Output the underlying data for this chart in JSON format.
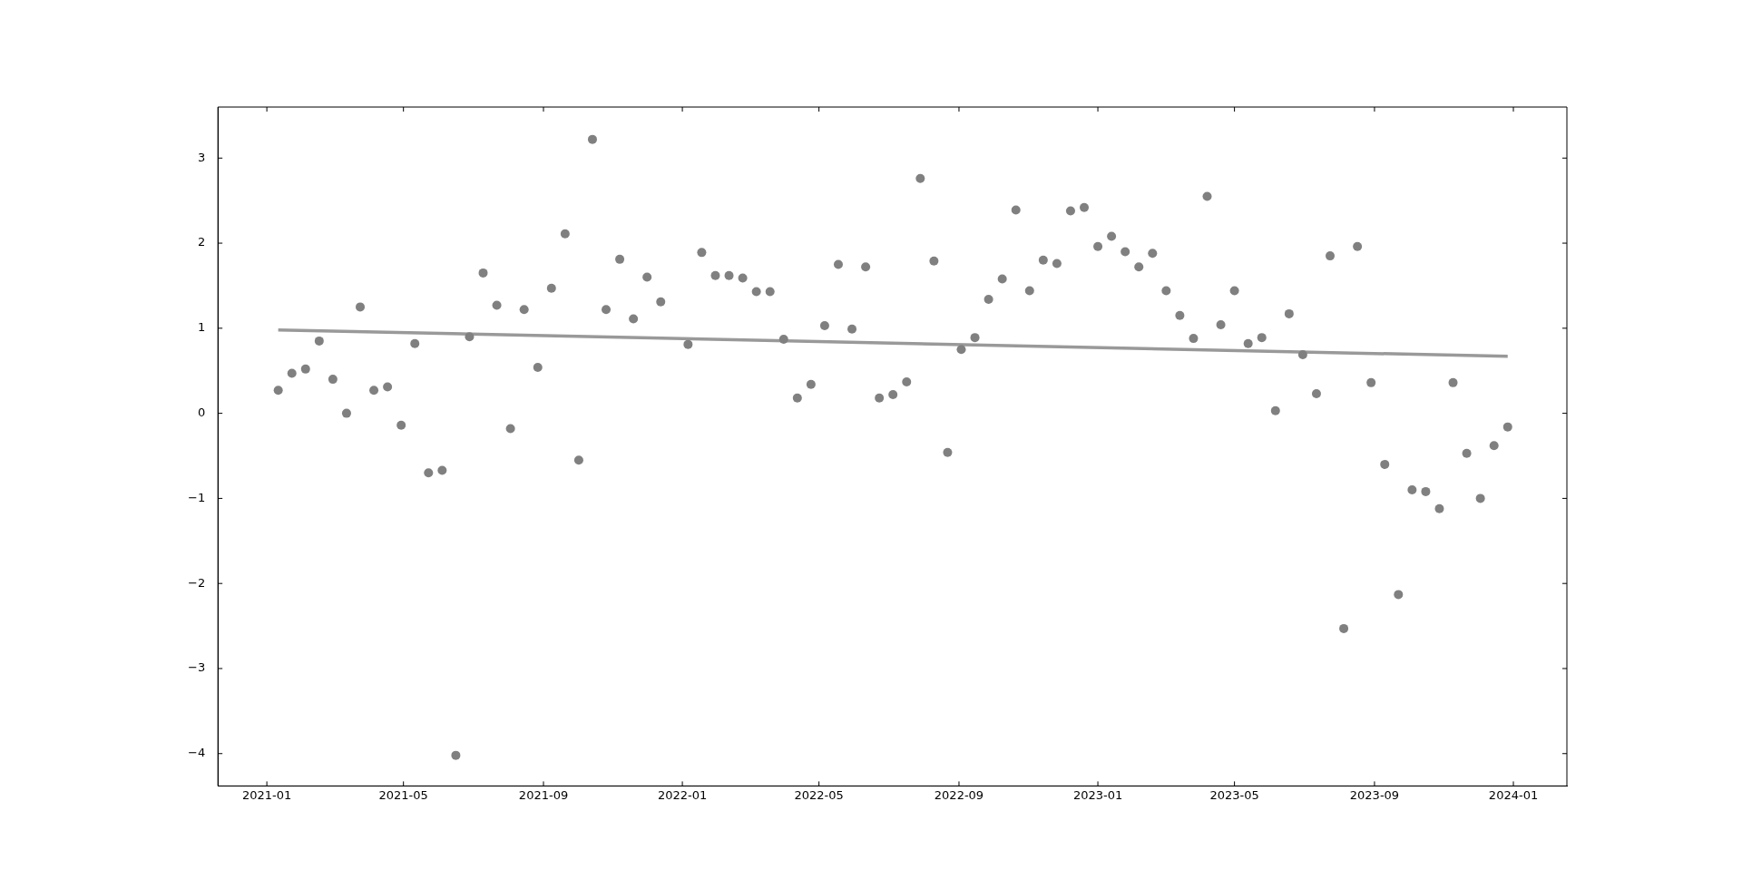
{
  "chart_data": {
    "type": "scatter",
    "x": [
      "2021-01-11",
      "2021-01-23",
      "2021-02-04",
      "2021-02-16",
      "2021-02-28",
      "2021-03-12",
      "2021-03-24",
      "2021-04-05",
      "2021-04-17",
      "2021-04-29",
      "2021-05-11",
      "2021-05-23",
      "2021-06-04",
      "2021-06-16",
      "2021-06-28",
      "2021-07-10",
      "2021-07-22",
      "2021-08-03",
      "2021-08-15",
      "2021-08-27",
      "2021-09-08",
      "2021-09-20",
      "2021-10-02",
      "2021-10-14",
      "2021-10-26",
      "2021-11-07",
      "2021-11-19",
      "2021-12-01",
      "2021-12-13",
      "2022-01-06",
      "2022-01-18",
      "2022-01-30",
      "2022-02-11",
      "2022-02-23",
      "2022-03-07",
      "2022-03-19",
      "2022-03-31",
      "2022-04-12",
      "2022-04-24",
      "2022-05-06",
      "2022-05-18",
      "2022-05-30",
      "2022-06-11",
      "2022-06-23",
      "2022-07-05",
      "2022-07-17",
      "2022-07-29",
      "2022-08-10",
      "2022-08-22",
      "2022-09-03",
      "2022-09-15",
      "2022-09-27",
      "2022-10-09",
      "2022-10-21",
      "2022-11-02",
      "2022-11-14",
      "2022-11-26",
      "2022-12-08",
      "2022-12-20",
      "2023-01-01",
      "2023-01-13",
      "2023-01-25",
      "2023-02-06",
      "2023-02-18",
      "2023-03-02",
      "2023-03-14",
      "2023-03-26",
      "2023-04-07",
      "2023-04-19",
      "2023-05-01",
      "2023-05-13",
      "2023-05-25",
      "2023-06-06",
      "2023-06-18",
      "2023-06-30",
      "2023-07-12",
      "2023-07-24",
      "2023-08-05",
      "2023-08-17",
      "2023-08-29",
      "2023-09-10",
      "2023-09-22",
      "2023-10-04",
      "2023-10-16",
      "2023-10-28",
      "2023-11-09",
      "2023-11-21",
      "2023-12-03",
      "2023-12-15",
      "2023-12-27"
    ],
    "series": [
      {
        "color": "#808080",
        "marker": "circle",
        "values": [
          0.27,
          0.47,
          0.52,
          0.85,
          0.4,
          0.0,
          1.25,
          0.27,
          0.31,
          -0.14,
          0.82,
          -0.7,
          -0.67,
          -4.02,
          0.9,
          1.65,
          1.27,
          -0.18,
          1.22,
          0.54,
          1.47,
          2.11,
          -0.55,
          3.22,
          1.22,
          1.81,
          1.11,
          1.6,
          1.31,
          0.81,
          1.89,
          1.62,
          1.62,
          1.59,
          1.43,
          1.43,
          0.87,
          0.18,
          0.34,
          1.03,
          1.75,
          0.99,
          1.72,
          0.18,
          0.22,
          0.37,
          2.76,
          1.79,
          -0.46,
          0.75,
          0.89,
          1.34,
          1.58,
          2.39,
          1.44,
          1.8,
          1.76,
          2.38,
          2.42,
          1.96,
          2.08,
          1.9,
          1.72,
          1.88,
          1.44,
          1.15,
          0.88,
          2.55,
          1.04,
          1.44,
          0.82,
          0.89,
          0.03,
          1.17,
          0.69,
          0.23,
          1.85,
          -2.53,
          1.96,
          0.36,
          -0.6,
          -2.13,
          -0.9,
          -0.92,
          -1.12,
          0.36,
          -0.47,
          -1.0,
          -0.38,
          -0.16
        ]
      },
      {
        "type": "line",
        "color": "#999999",
        "line_style": "solid",
        "marker": "none",
        "x": [
          "2021-01-11",
          "2023-12-27"
        ],
        "values": [
          0.98,
          0.67
        ]
      }
    ],
    "xlim": [
      "2020-11-19",
      "2024-02-17"
    ],
    "xticks": [
      {
        "value": "2021-01-01",
        "label": "2021-01"
      },
      {
        "value": "2021-05-01",
        "label": "2021-05"
      },
      {
        "value": "2021-09-01",
        "label": "2021-09"
      },
      {
        "value": "2022-01-01",
        "label": "2022-01"
      },
      {
        "value": "2022-05-01",
        "label": "2022-05"
      },
      {
        "value": "2022-09-01",
        "label": "2022-09"
      },
      {
        "value": "2023-01-01",
        "label": "2023-01"
      },
      {
        "value": "2023-05-01",
        "label": "2023-05"
      },
      {
        "value": "2023-09-01",
        "label": "2023-09"
      },
      {
        "value": "2024-01-01",
        "label": "2024-01"
      }
    ],
    "ylim": [
      -4.38,
      3.6
    ],
    "yticks": [
      {
        "value": -4,
        "label": "−4"
      },
      {
        "value": -3,
        "label": "−3"
      },
      {
        "value": -2,
        "label": "−2"
      },
      {
        "value": -1,
        "label": "−1"
      },
      0,
      1,
      2,
      3
    ],
    "grid": false,
    "legend": false
  }
}
